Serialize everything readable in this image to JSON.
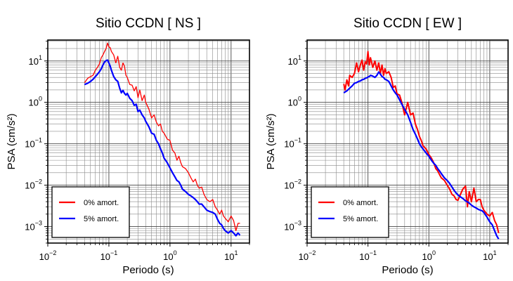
{
  "chart_data": [
    {
      "type": "line",
      "title": "Sitio CCDN [ NS ]",
      "xlabel": "Periodo (s)",
      "ylabel": "PSA (cm/s²)",
      "xscale": "log",
      "yscale": "log",
      "xlim": [
        0.01,
        20
      ],
      "ylim": [
        0.0004,
        32
      ],
      "grid": true,
      "legend_position": "bottom-left",
      "xticks": [
        {
          "base": "10",
          "exp": "−2"
        },
        {
          "base": "10",
          "exp": "−1"
        },
        {
          "base": "10",
          "exp": "0"
        },
        {
          "base": "10",
          "exp": "1"
        }
      ],
      "yticks": [
        {
          "base": "10",
          "exp": "−3"
        },
        {
          "base": "10",
          "exp": "−2"
        },
        {
          "base": "10",
          "exp": "−1"
        },
        {
          "base": "10",
          "exp": "0"
        },
        {
          "base": "10",
          "exp": "1"
        }
      ],
      "series": [
        {
          "name": "0% amort.",
          "color": "#ff0000",
          "width": 1.3,
          "x": [
            0.04,
            0.045,
            0.05,
            0.055,
            0.06,
            0.065,
            0.07,
            0.075,
            0.08,
            0.085,
            0.09,
            0.095,
            0.1,
            0.105,
            0.11,
            0.12,
            0.13,
            0.14,
            0.15,
            0.16,
            0.17,
            0.18,
            0.19,
            0.2,
            0.22,
            0.24,
            0.26,
            0.28,
            0.3,
            0.32,
            0.35,
            0.38,
            0.4,
            0.45,
            0.5,
            0.55,
            0.6,
            0.65,
            0.7,
            0.75,
            0.8,
            0.9,
            1.0,
            1.1,
            1.2,
            1.3,
            1.4,
            1.5,
            1.6,
            1.8,
            2.0,
            2.2,
            2.4,
            2.6,
            2.8,
            3.0,
            3.3,
            3.6,
            4.0,
            4.5,
            5.0,
            5.5,
            6.0,
            6.5,
            7.0,
            7.5,
            8.0,
            9.0,
            10.0,
            11.0,
            12.0,
            13.0,
            14.0
          ],
          "y": [
            3.0,
            3.8,
            4.2,
            4.5,
            6.0,
            7.0,
            8.5,
            12,
            14,
            17,
            20,
            27,
            22,
            21,
            17,
            14,
            9.0,
            13,
            7.0,
            6.0,
            9.0,
            7.5,
            4.5,
            4.0,
            2.7,
            2.6,
            1.9,
            2.4,
            1.3,
            2.0,
            1.1,
            1.5,
            1.0,
            0.7,
            0.42,
            0.5,
            0.33,
            0.27,
            0.3,
            0.2,
            0.18,
            0.13,
            0.12,
            0.07,
            0.06,
            0.04,
            0.05,
            0.035,
            0.028,
            0.025,
            0.02,
            0.015,
            0.012,
            0.014,
            0.01,
            0.0085,
            0.009,
            0.006,
            0.0045,
            0.004,
            0.0045,
            0.003,
            0.0025,
            0.002,
            0.0025,
            0.0018,
            0.0016,
            0.0013,
            0.0018,
            0.0014,
            0.0008,
            0.0012,
            0.0012
          ]
        },
        {
          "name": "5% amort.",
          "color": "#0000ff",
          "width": 2.2,
          "x": [
            0.04,
            0.045,
            0.05,
            0.055,
            0.06,
            0.065,
            0.07,
            0.075,
            0.08,
            0.085,
            0.09,
            0.095,
            0.1,
            0.105,
            0.11,
            0.12,
            0.13,
            0.14,
            0.15,
            0.16,
            0.17,
            0.18,
            0.19,
            0.2,
            0.22,
            0.24,
            0.26,
            0.28,
            0.3,
            0.32,
            0.35,
            0.38,
            0.4,
            0.45,
            0.5,
            0.55,
            0.6,
            0.65,
            0.7,
            0.75,
            0.8,
            0.9,
            1.0,
            1.1,
            1.2,
            1.3,
            1.4,
            1.5,
            1.6,
            1.8,
            2.0,
            2.2,
            2.4,
            2.6,
            2.8,
            3.0,
            3.3,
            3.6,
            4.0,
            4.5,
            5.0,
            5.5,
            6.0,
            6.5,
            7.0,
            7.5,
            8.0,
            9.0,
            10.0,
            11.0,
            12.0,
            13.0,
            14.0
          ],
          "y": [
            2.7,
            2.9,
            3.2,
            3.6,
            4.2,
            4.8,
            5.5,
            6.5,
            8.0,
            9.5,
            10.2,
            10.5,
            9.0,
            7.5,
            6.0,
            4.2,
            3.5,
            3.2,
            2.2,
            1.7,
            1.95,
            1.65,
            1.5,
            1.65,
            1.25,
            1.1,
            0.85,
            0.9,
            0.6,
            0.65,
            0.5,
            0.42,
            0.35,
            0.26,
            0.18,
            0.17,
            0.12,
            0.1,
            0.075,
            0.06,
            0.045,
            0.035,
            0.026,
            0.02,
            0.016,
            0.013,
            0.012,
            0.01,
            0.008,
            0.007,
            0.006,
            0.0055,
            0.005,
            0.0045,
            0.004,
            0.0035,
            0.0035,
            0.003,
            0.0025,
            0.0023,
            0.0022,
            0.002,
            0.0015,
            0.0012,
            0.0011,
            0.0009,
            0.0008,
            0.0007,
            0.0008,
            0.0007,
            0.0006,
            0.0007,
            0.00062
          ]
        }
      ]
    },
    {
      "type": "line",
      "title": "Sitio CCDN [ EW ]",
      "xlabel": "Periodo (s)",
      "ylabel": "PSA (cm/s²)",
      "xscale": "log",
      "yscale": "log",
      "xlim": [
        0.01,
        20
      ],
      "ylim": [
        0.0004,
        32
      ],
      "grid": true,
      "legend_position": "bottom-left",
      "xticks": [
        {
          "base": "10",
          "exp": "−2"
        },
        {
          "base": "10",
          "exp": "−1"
        },
        {
          "base": "10",
          "exp": "0"
        },
        {
          "base": "10",
          "exp": "1"
        }
      ],
      "yticks": [
        {
          "base": "10",
          "exp": "−3"
        },
        {
          "base": "10",
          "exp": "−2"
        },
        {
          "base": "10",
          "exp": "−1"
        },
        {
          "base": "10",
          "exp": "0"
        },
        {
          "base": "10",
          "exp": "1"
        }
      ],
      "series": [
        {
          "name": "0% amort.",
          "color": "#ff0000",
          "width": 2.0,
          "x": [
            0.04,
            0.042,
            0.045,
            0.048,
            0.05,
            0.055,
            0.06,
            0.065,
            0.07,
            0.075,
            0.08,
            0.085,
            0.09,
            0.095,
            0.1,
            0.105,
            0.11,
            0.12,
            0.13,
            0.14,
            0.15,
            0.16,
            0.17,
            0.18,
            0.19,
            0.2,
            0.22,
            0.24,
            0.26,
            0.28,
            0.3,
            0.33,
            0.36,
            0.4,
            0.45,
            0.5,
            0.55,
            0.6,
            0.65,
            0.7,
            0.75,
            0.8,
            0.9,
            1.0,
            1.1,
            1.2,
            1.3,
            1.4,
            1.5,
            1.6,
            1.8,
            2.0,
            2.2,
            2.4,
            2.6,
            2.8,
            3.0,
            3.3,
            3.6,
            4.0,
            4.3,
            4.6,
            5.0,
            5.5,
            6.0,
            6.5,
            7.0,
            7.5,
            8.0,
            9.0,
            10.0,
            11.0,
            12.0,
            13.0,
            14.0
          ],
          "y": [
            2.8,
            2.0,
            3.5,
            2.5,
            4.5,
            4.0,
            5.0,
            9.0,
            5.5,
            8.0,
            10.5,
            6.0,
            9.5,
            8.5,
            17,
            8.0,
            12,
            7.0,
            10,
            6.0,
            9.0,
            5.0,
            8.0,
            4.5,
            6.5,
            5.0,
            5.5,
            4.0,
            2.3,
            2.5,
            1.6,
            1.5,
            1.0,
            0.5,
            1.0,
            0.5,
            0.55,
            0.3,
            0.22,
            0.15,
            0.12,
            0.09,
            0.075,
            0.055,
            0.045,
            0.035,
            0.025,
            0.022,
            0.018,
            0.015,
            0.013,
            0.01,
            0.008,
            0.006,
            0.0055,
            0.0045,
            0.0043,
            0.006,
            0.008,
            0.0095,
            0.003,
            0.007,
            0.004,
            0.0085,
            0.004,
            0.0045,
            0.0045,
            0.003,
            0.0025,
            0.002,
            0.0018,
            0.0022,
            0.0014,
            0.0011,
            0.0007
          ]
        },
        {
          "name": "5% amort.",
          "color": "#0000ff",
          "width": 2.2,
          "x": [
            0.04,
            0.045,
            0.05,
            0.055,
            0.06,
            0.065,
            0.07,
            0.075,
            0.08,
            0.085,
            0.09,
            0.095,
            0.1,
            0.105,
            0.11,
            0.12,
            0.13,
            0.14,
            0.15,
            0.16,
            0.17,
            0.18,
            0.19,
            0.2,
            0.22,
            0.24,
            0.26,
            0.28,
            0.3,
            0.33,
            0.36,
            0.4,
            0.45,
            0.5,
            0.55,
            0.6,
            0.65,
            0.7,
            0.75,
            0.8,
            0.9,
            1.0,
            1.1,
            1.2,
            1.3,
            1.4,
            1.5,
            1.6,
            1.8,
            2.0,
            2.2,
            2.4,
            2.6,
            2.8,
            3.0,
            3.3,
            3.6,
            4.0,
            4.5,
            5.0,
            5.5,
            6.0,
            6.5,
            7.0,
            7.5,
            8.0,
            9.0,
            10.0,
            11.0,
            12.0,
            13.0,
            14.0
          ],
          "y": [
            1.7,
            1.9,
            2.2,
            2.5,
            2.9,
            3.0,
            3.2,
            3.3,
            3.5,
            3.6,
            3.8,
            3.9,
            4.1,
            4.2,
            4.5,
            4.3,
            4.0,
            4.5,
            5.4,
            4.8,
            4.2,
            4.0,
            3.6,
            3.5,
            3.2,
            2.5,
            2.0,
            1.7,
            1.5,
            1.15,
            0.9,
            0.68,
            0.5,
            0.33,
            0.22,
            0.17,
            0.13,
            0.1,
            0.085,
            0.075,
            0.06,
            0.05,
            0.04,
            0.034,
            0.03,
            0.025,
            0.022,
            0.019,
            0.015,
            0.013,
            0.011,
            0.009,
            0.0075,
            0.0065,
            0.0058,
            0.0052,
            0.0048,
            0.0042,
            0.0038,
            0.0033,
            0.003,
            0.0028,
            0.0026,
            0.0025,
            0.0024,
            0.0022,
            0.0017,
            0.0013,
            0.0011,
            0.0008,
            0.0006,
            0.0005
          ]
        }
      ]
    }
  ]
}
